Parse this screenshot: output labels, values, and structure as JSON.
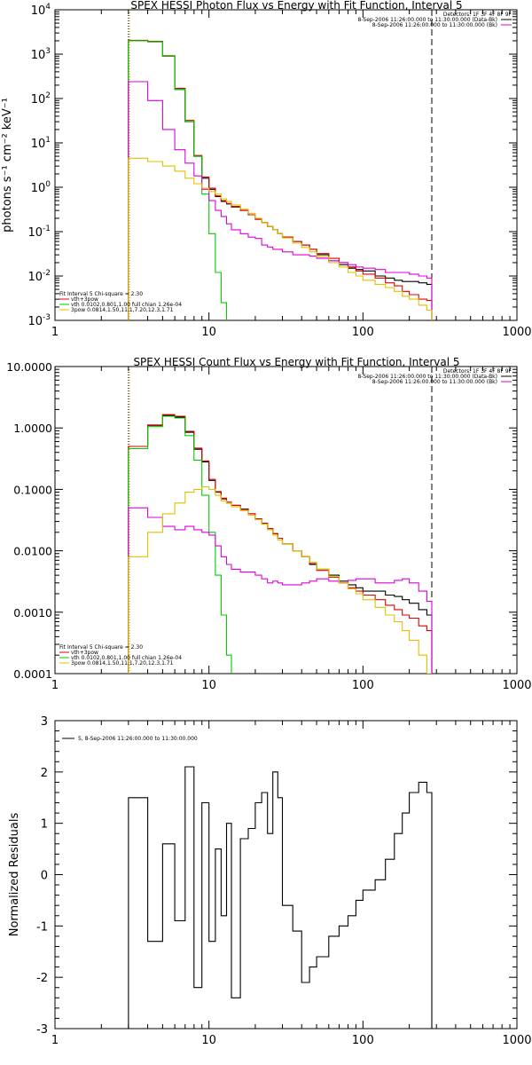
{
  "chart_data": [
    {
      "type": "line",
      "title": "SPEX HESSI Photon Flux vs Energy with Fit Function, Interval 5",
      "xlabel": "",
      "ylabel": "photons s⁻¹ cm⁻² keV⁻¹",
      "xscale": "log",
      "yscale": "log",
      "xlim": [
        1,
        1000
      ],
      "ylim": [
        0.001,
        10000
      ],
      "x_tick_labels": [
        "1",
        "10",
        "100",
        "1000"
      ],
      "y_tick_labels": [
        {
          "mant": "10",
          "exp": "-3"
        },
        {
          "mant": "10",
          "exp": "-2"
        },
        {
          "mant": "10",
          "exp": "-1"
        },
        {
          "mant": "10",
          "exp": "0"
        },
        {
          "mant": "10",
          "exp": "1"
        },
        {
          "mant": "10",
          "exp": "2"
        },
        {
          "mant": "10",
          "exp": "3"
        },
        {
          "mant": "10",
          "exp": "4"
        }
      ],
      "header_lines": [
        "Detectors: 1F 3F 4F 8F 9F",
        "8-Sep-2006 11:26:00.000 to 11:30:00.000 (Data-Bk)",
        "8-Sep-2006 11:26:00.000 to 11:30:00.000 (Bk)"
      ],
      "fit_legend": [
        "Fit Interval 5   Chi-square = 2.30",
        "vth+3pow",
        "vth 0.0102,0.801,1.00  full chian 1.26e-04",
        "3pow 0.0814,1.50,11.1,7.20,12.3,1.71"
      ],
      "vlines": [
        {
          "x": 3.0,
          "style": "dotted",
          "color": "#000000"
        },
        {
          "x": 3.05,
          "style": "dotted",
          "color": "#e0a000"
        },
        {
          "x": 280,
          "style": "dashed",
          "color": "#000000"
        }
      ],
      "series": [
        {
          "color": "#000000",
          "edges": [
            3,
            4,
            5,
            6,
            7,
            8,
            9,
            10,
            11,
            12,
            13,
            14,
            16,
            18,
            20,
            22,
            24,
            26,
            28,
            30,
            35,
            40,
            45,
            50,
            60,
            70,
            80,
            90,
            100,
            120,
            140,
            160,
            180,
            200,
            230,
            260,
            280
          ],
          "values": [
            2000,
            1900,
            900,
            160,
            30,
            5,
            1.6,
            0.9,
            0.62,
            0.48,
            0.42,
            0.36,
            0.3,
            0.24,
            0.19,
            0.16,
            0.13,
            0.11,
            0.09,
            0.075,
            0.06,
            0.05,
            0.04,
            0.03,
            0.022,
            0.018,
            0.015,
            0.014,
            0.013,
            0.01,
            0.009,
            0.008,
            0.0075,
            0.0075,
            0.007,
            0.0065
          ]
        },
        {
          "color": "#dd0000",
          "edges": [
            3,
            4,
            5,
            6,
            7,
            8,
            9,
            10,
            11,
            12,
            13,
            14,
            16,
            18,
            20,
            22,
            24,
            26,
            28,
            30,
            35,
            40,
            45,
            50,
            60,
            70,
            80,
            90,
            100,
            120,
            140,
            160,
            180,
            200,
            230,
            260,
            280
          ],
          "values": [
            2050,
            1950,
            920,
            170,
            32,
            5.2,
            1.7,
            0.95,
            0.64,
            0.5,
            0.43,
            0.37,
            0.3,
            0.24,
            0.19,
            0.16,
            0.13,
            0.11,
            0.09,
            0.075,
            0.06,
            0.05,
            0.04,
            0.032,
            0.025,
            0.02,
            0.016,
            0.013,
            0.011,
            0.009,
            0.007,
            0.006,
            0.0045,
            0.0038,
            0.003,
            0.0028
          ]
        },
        {
          "color": "#00cc00",
          "edges": [
            3,
            4,
            5,
            6,
            7,
            8,
            9,
            10,
            11,
            12,
            13,
            14
          ],
          "values": [
            2000,
            1900,
            900,
            160,
            30,
            5,
            0.7,
            0.09,
            0.012,
            0.0025,
            0.0009
          ]
        },
        {
          "color": "#dd00dd",
          "edges": [
            3,
            4,
            5,
            6,
            7,
            8,
            9,
            10,
            11,
            12,
            13,
            14,
            16,
            18,
            20,
            22,
            24,
            26,
            28,
            30,
            35,
            40,
            45,
            50,
            60,
            70,
            80,
            90,
            100,
            120,
            140,
            160,
            180,
            200,
            230,
            260,
            280
          ],
          "values": [
            240,
            90,
            20,
            7,
            3.5,
            1.8,
            0.9,
            0.5,
            0.3,
            0.22,
            0.15,
            0.11,
            0.09,
            0.075,
            0.07,
            0.05,
            0.045,
            0.04,
            0.04,
            0.035,
            0.03,
            0.03,
            0.028,
            0.025,
            0.022,
            0.02,
            0.018,
            0.016,
            0.015,
            0.014,
            0.012,
            0.012,
            0.012,
            0.011,
            0.01,
            0.009
          ]
        },
        {
          "color": "#e0c000",
          "edges": [
            3,
            4,
            5,
            6,
            7,
            8,
            9,
            10,
            11,
            12,
            13,
            14,
            16,
            18,
            20,
            22,
            24,
            26,
            28,
            30,
            35,
            40,
            45,
            50,
            60,
            70,
            80,
            90,
            100,
            120,
            140,
            160,
            180,
            200,
            230,
            260,
            280
          ],
          "values": [
            4.5,
            3.8,
            3.0,
            2.3,
            1.6,
            1.2,
            0.95,
            0.8,
            0.7,
            0.55,
            0.48,
            0.4,
            0.32,
            0.26,
            0.2,
            0.16,
            0.13,
            0.11,
            0.09,
            0.072,
            0.055,
            0.044,
            0.035,
            0.027,
            0.02,
            0.016,
            0.012,
            0.01,
            0.008,
            0.0065,
            0.0055,
            0.0045,
            0.0035,
            0.003,
            0.0022,
            0.0017
          ]
        }
      ]
    },
    {
      "type": "line",
      "title": "SPEX HESSI Count Flux vs Energy with Fit Function, Interval 5",
      "xlabel": "",
      "ylabel": "",
      "xscale": "log",
      "yscale": "log",
      "xlim": [
        1,
        1000
      ],
      "ylim": [
        0.0001,
        10
      ],
      "x_tick_labels": [
        "1",
        "10",
        "100",
        "1000"
      ],
      "y_tick_labels": [
        "0.0001",
        "0.0010",
        "0.0100",
        "0.1000",
        "1.0000",
        "10.0000"
      ],
      "header_lines": [
        "Detectors: 1F 3F 4F 8F 9F",
        "8-Sep-2006 11:26:00.000 to 11:30:00.000 (Data-Bk)",
        "8-Sep-2006 11:26:00.000 to 11:30:00.000 (Bk)"
      ],
      "fit_legend": [
        "Fit Interval 5   Chi-square = 2.30",
        "vth+3pow",
        "vth 0.0102,0.801,1.00  full chian 1.26e-04",
        "3pow 0.0814,1.50,11.1,7.20,12.3,1.71"
      ],
      "vlines": [
        {
          "x": 3.0,
          "style": "dotted",
          "color": "#000000"
        },
        {
          "x": 3.05,
          "style": "dotted",
          "color": "#e0a000"
        },
        {
          "x": 280,
          "style": "dashed",
          "color": "#000000"
        }
      ],
      "series": [
        {
          "color": "#000000",
          "edges": [
            3,
            4,
            5,
            6,
            7,
            8,
            9,
            10,
            11,
            12,
            13,
            14,
            16,
            18,
            20,
            22,
            24,
            26,
            28,
            30,
            35,
            40,
            45,
            50,
            60,
            70,
            80,
            90,
            100,
            120,
            140,
            160,
            180,
            200,
            230,
            260,
            280
          ],
          "values": [
            0.5,
            1.1,
            1.6,
            1.5,
            0.85,
            0.45,
            0.28,
            0.14,
            0.09,
            0.07,
            0.06,
            0.055,
            0.048,
            0.04,
            0.033,
            0.028,
            0.023,
            0.019,
            0.016,
            0.013,
            0.01,
            0.008,
            0.006,
            0.005,
            0.004,
            0.0032,
            0.0028,
            0.0025,
            0.0022,
            0.0022,
            0.0019,
            0.0018,
            0.0016,
            0.0014,
            0.0011,
            0.0009
          ]
        },
        {
          "color": "#dd0000",
          "edges": [
            3,
            4,
            5,
            6,
            7,
            8,
            9,
            10,
            11,
            12,
            13,
            14,
            16,
            18,
            20,
            22,
            24,
            26,
            28,
            30,
            35,
            40,
            45,
            50,
            60,
            70,
            80,
            90,
            100,
            120,
            140,
            160,
            180,
            200,
            230,
            260,
            280
          ],
          "values": [
            0.5,
            1.12,
            1.65,
            1.55,
            0.88,
            0.47,
            0.29,
            0.145,
            0.092,
            0.072,
            0.062,
            0.055,
            0.047,
            0.04,
            0.033,
            0.028,
            0.023,
            0.019,
            0.016,
            0.013,
            0.01,
            0.008,
            0.0062,
            0.0048,
            0.0037,
            0.003,
            0.0025,
            0.0022,
            0.0019,
            0.0016,
            0.0013,
            0.0011,
            0.0009,
            0.0008,
            0.0006,
            0.0005
          ]
        },
        {
          "color": "#00cc00",
          "edges": [
            3,
            4,
            5,
            6,
            7,
            8,
            9,
            10,
            11,
            12,
            13,
            14
          ],
          "values": [
            0.46,
            1.05,
            1.55,
            1.45,
            0.75,
            0.3,
            0.08,
            0.02,
            0.004,
            0.0009,
            0.0002
          ]
        },
        {
          "color": "#dd00dd",
          "edges": [
            3,
            4,
            5,
            6,
            7,
            8,
            9,
            10,
            11,
            12,
            13,
            14,
            16,
            18,
            20,
            22,
            24,
            26,
            28,
            30,
            35,
            40,
            45,
            50,
            60,
            70,
            80,
            90,
            100,
            120,
            140,
            160,
            180,
            200,
            230,
            260,
            280
          ],
          "values": [
            0.05,
            0.035,
            0.025,
            0.022,
            0.025,
            0.022,
            0.02,
            0.018,
            0.012,
            0.008,
            0.006,
            0.005,
            0.0045,
            0.0045,
            0.004,
            0.0035,
            0.003,
            0.0032,
            0.003,
            0.0028,
            0.0028,
            0.003,
            0.0032,
            0.0035,
            0.0032,
            0.003,
            0.0033,
            0.0035,
            0.0035,
            0.003,
            0.003,
            0.0033,
            0.0035,
            0.003,
            0.0022,
            0.0015
          ]
        },
        {
          "color": "#e0c000",
          "edges": [
            3,
            4,
            5,
            6,
            7,
            8,
            9,
            10,
            11,
            12,
            13,
            14,
            16,
            18,
            20,
            22,
            24,
            26,
            28,
            30,
            35,
            40,
            45,
            50,
            60,
            70,
            80,
            90,
            100,
            120,
            140,
            160,
            180,
            200,
            230,
            260,
            280
          ],
          "values": [
            0.008,
            0.02,
            0.04,
            0.06,
            0.09,
            0.1,
            0.11,
            0.1,
            0.08,
            0.065,
            0.06,
            0.052,
            0.045,
            0.038,
            0.032,
            0.027,
            0.022,
            0.018,
            0.015,
            0.013,
            0.01,
            0.008,
            0.0065,
            0.005,
            0.0038,
            0.003,
            0.0024,
            0.002,
            0.0016,
            0.0012,
            0.0009,
            0.0007,
            0.0005,
            0.00035,
            0.0002,
            0.0001
          ]
        }
      ]
    },
    {
      "type": "line",
      "title": "",
      "xlabel": "",
      "ylabel": "Normalized Residuals",
      "xscale": "log",
      "yscale": "linear",
      "xlim": [
        1,
        1000
      ],
      "ylim": [
        -3,
        3
      ],
      "x_tick_labels": [
        "1",
        "10",
        "100",
        "1000"
      ],
      "y_tick_labels": [
        "-3",
        "-2",
        "-1",
        "0",
        "1",
        "2",
        "3"
      ],
      "legend": "5,  8-Sep-2006 11:26:00.000 to 11:30:00.000",
      "series": [
        {
          "color": "#000000",
          "edges": [
            3,
            4,
            5,
            6,
            7,
            8,
            9,
            10,
            11,
            12,
            13,
            14,
            16,
            18,
            20,
            22,
            24,
            26,
            28,
            30,
            35,
            40,
            45,
            50,
            60,
            70,
            80,
            90,
            100,
            120,
            140,
            160,
            180,
            200,
            230,
            260,
            280
          ],
          "values": [
            1.5,
            -1.3,
            0.6,
            -0.9,
            2.1,
            -2.2,
            1.4,
            -1.3,
            0.5,
            -0.8,
            1.0,
            -2.4,
            0.7,
            0.9,
            1.4,
            1.6,
            0.8,
            2.0,
            1.5,
            -0.6,
            -1.1,
            -2.1,
            -1.8,
            -1.6,
            -1.2,
            -1.0,
            -0.8,
            -0.5,
            -0.3,
            -0.1,
            0.3,
            0.8,
            1.2,
            1.6,
            1.8,
            1.6
          ]
        }
      ]
    }
  ]
}
